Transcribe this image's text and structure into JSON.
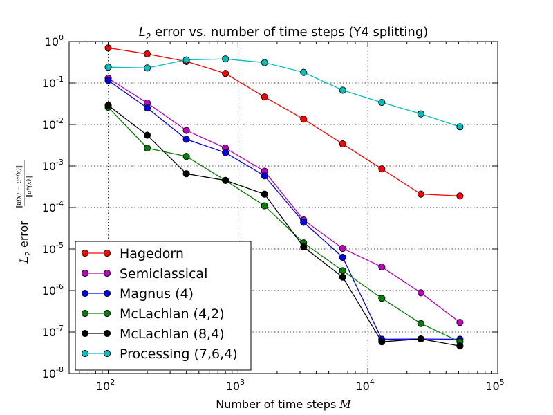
{
  "chart_data": {
    "type": "line",
    "title_prefix": "L",
    "title_sub": "2",
    "title_rest": " error vs. number of time steps (Y4 splitting)",
    "xlabel": "Number of time steps ",
    "xlabel_var": "M",
    "ylabel_prefix": "L",
    "ylabel_sub": "2",
    "ylabel_rest": " error",
    "ylabel_fraction_numerator": "‖u(x) − u*(x)‖",
    "ylabel_fraction_denominator": "‖u*(x)‖",
    "x_scale": "log",
    "y_scale": "log",
    "xlim": [
      50,
      100000
    ],
    "ylim": [
      1e-08,
      1
    ],
    "x_ticks": [
      {
        "value": 100,
        "base": "10",
        "exp": "2"
      },
      {
        "value": 1000,
        "base": "10",
        "exp": "3"
      },
      {
        "value": 10000,
        "base": "10",
        "exp": "4"
      },
      {
        "value": 100000,
        "base": "10",
        "exp": "5"
      }
    ],
    "y_ticks": [
      {
        "value": 1,
        "base": "10",
        "exp": "0"
      },
      {
        "value": 0.1,
        "base": "10",
        "exp": "-1"
      },
      {
        "value": 0.01,
        "base": "10",
        "exp": "-2"
      },
      {
        "value": 0.001,
        "base": "10",
        "exp": "-3"
      },
      {
        "value": 0.0001,
        "base": "10",
        "exp": "-4"
      },
      {
        "value": 1e-05,
        "base": "10",
        "exp": "-5"
      },
      {
        "value": 1e-06,
        "base": "10",
        "exp": "-6"
      },
      {
        "value": 1e-07,
        "base": "10",
        "exp": "-7"
      },
      {
        "value": 1e-08,
        "base": "10",
        "exp": "-8"
      }
    ],
    "grid": true,
    "legend_position": "lower-left",
    "x": [
      100,
      200,
      400,
      800,
      1600,
      3200,
      6400,
      12800,
      25600,
      51200
    ],
    "series": [
      {
        "name": "Hagedorn",
        "color": "#ff0000",
        "values": [
          0.7,
          0.5,
          0.33,
          0.17,
          0.046,
          0.0135,
          0.0034,
          0.00085,
          0.00021,
          0.00019
        ]
      },
      {
        "name": "Semiclassical",
        "color": "#bf00bf",
        "values": [
          0.13,
          0.033,
          0.0072,
          0.0027,
          0.00075,
          5e-05,
          1.03e-05,
          3.7e-06,
          8.8e-07,
          1.7e-07
        ]
      },
      {
        "name": "Magnus (4)",
        "color": "#0000ff",
        "values": [
          0.115,
          0.025,
          0.0044,
          0.0021,
          0.00058,
          4.4e-05,
          6.3e-06,
          6.7e-08,
          6.8e-08,
          6.7e-08
        ]
      },
      {
        "name": "McLachlan (4,2)",
        "color": "#008000",
        "values": [
          0.026,
          0.0027,
          0.0017,
          0.00045,
          0.00011,
          1.4e-05,
          3e-06,
          6.5e-07,
          1.6e-07,
          5.8e-08
        ]
      },
      {
        "name": "McLachlan (8,4)",
        "color": "#000000",
        "values": [
          0.029,
          0.0055,
          0.00065,
          0.00045,
          0.00021,
          1.12e-05,
          2.1e-06,
          5.8e-08,
          6.8e-08,
          4.6e-08
        ]
      },
      {
        "name": "Processing (7,6,4)",
        "color": "#00bfbf",
        "values": [
          0.24,
          0.23,
          0.36,
          0.38,
          0.31,
          0.18,
          0.067,
          0.034,
          0.018,
          0.0088
        ]
      }
    ]
  }
}
